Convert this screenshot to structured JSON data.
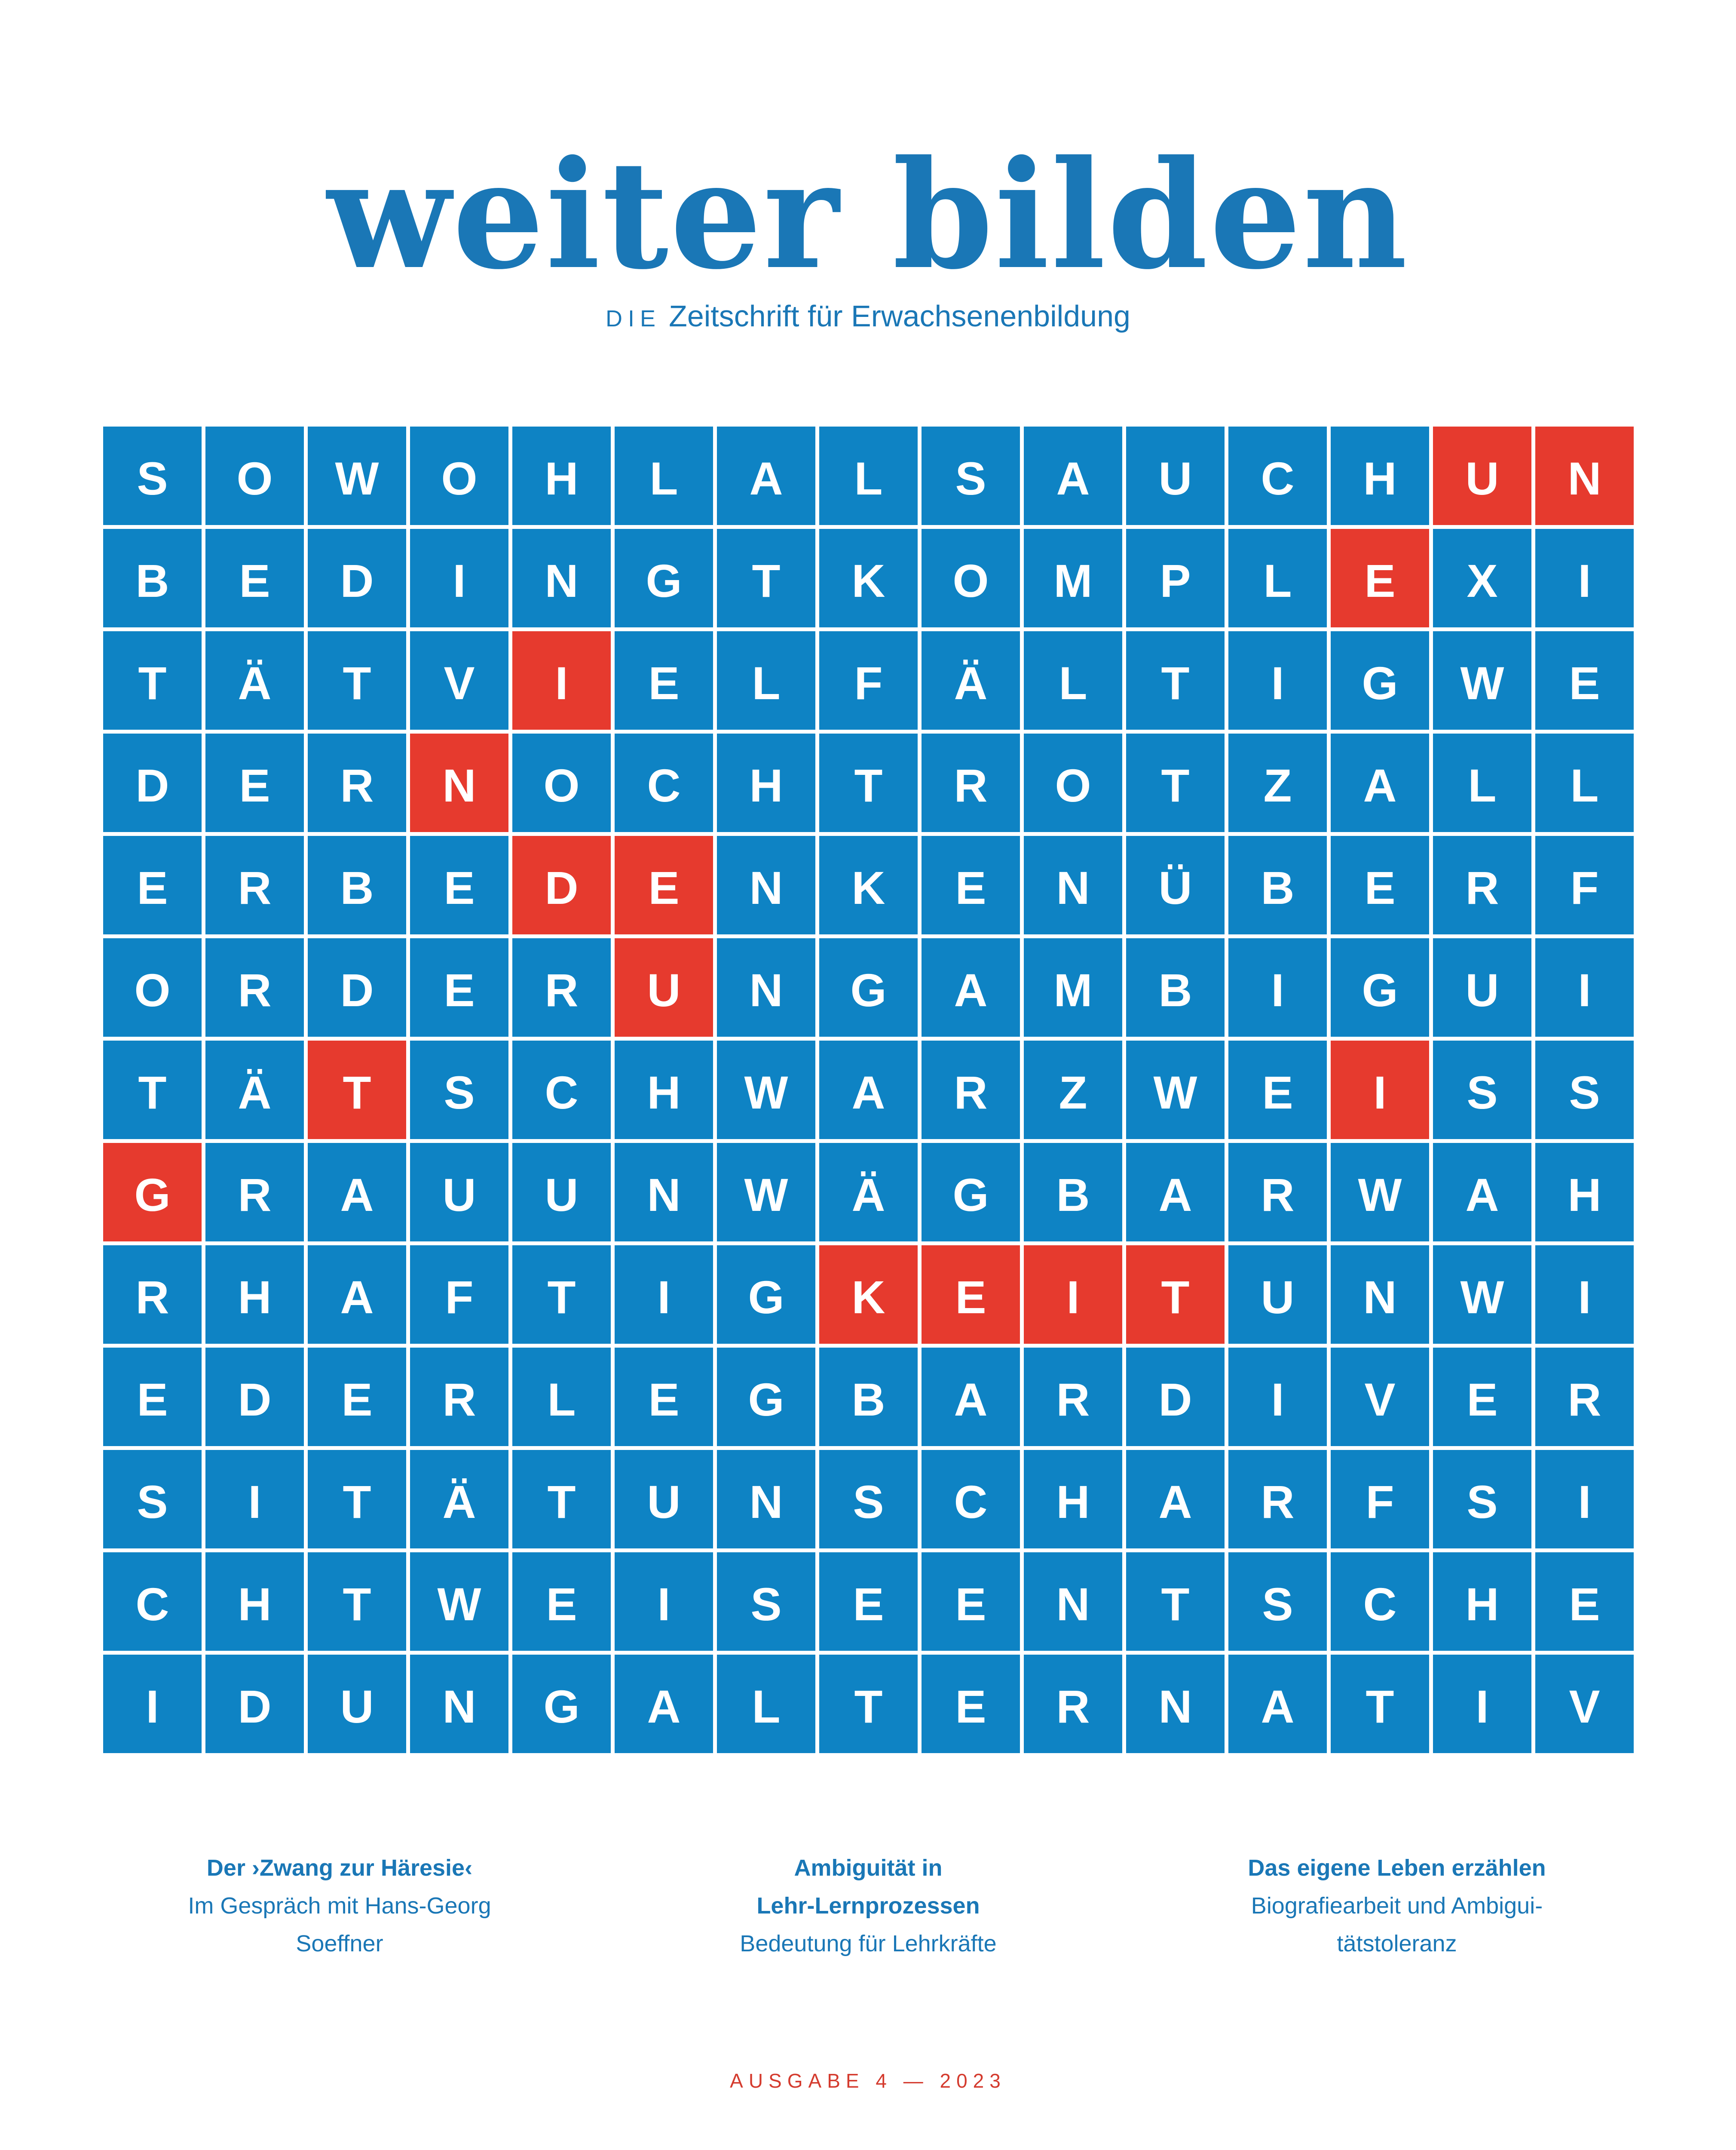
{
  "masthead": {
    "title": "weiter bilden",
    "subtitle_prefix": "DIE",
    "subtitle": "Zeitschrift für Erwachsenenbildung"
  },
  "grid": {
    "rows": [
      "SOWOHLALSAUCHUN",
      "BEDINGTKOMPLEXI",
      "TÄTVIELFÄLTIGWE",
      "DERNOCHTROTZALL",
      "ERBEDENKENÜBERF",
      "ORDERUNGAMBIGUI",
      "TÄTSCHWARZWEISS",
      "GRAUUNWÄGBARWAH",
      "RHAFTIGKEITUNWI",
      "EDERLEGBARDIVER",
      "SITÄTUNSCHARFSI",
      "CHTWEISEENTSCHE",
      "IDUNGALTERNATIV"
    ],
    "red_cells": [
      [
        0,
        13
      ],
      [
        0,
        14
      ],
      [
        1,
        12
      ],
      [
        2,
        4
      ],
      [
        3,
        3
      ],
      [
        4,
        4
      ],
      [
        4,
        5
      ],
      [
        5,
        5
      ],
      [
        6,
        2
      ],
      [
        6,
        12
      ],
      [
        7,
        0
      ],
      [
        8,
        7
      ],
      [
        8,
        8
      ],
      [
        8,
        9
      ],
      [
        8,
        10
      ]
    ],
    "hidden_word_red_letters": "UNEINDEUTIGKEIT"
  },
  "teasers": [
    {
      "title_lines": [
        "Der ›Zwang zur Häresie‹"
      ],
      "body_lines": [
        "Im Gespräch mit Hans-Georg",
        "Soeffner"
      ]
    },
    {
      "title_lines": [
        "Ambiguität in",
        "Lehr-Lernprozessen"
      ],
      "body_lines": [
        "Bedeutung für Lehrkräfte"
      ]
    },
    {
      "title_lines": [
        "Das eigene Leben erzählen"
      ],
      "body_lines": [
        "Biografiearbeit und Ambigui-",
        "tätstoleranz"
      ]
    }
  ],
  "footer": {
    "issue_label": "AUSGABE 4 — 2023"
  },
  "colors": {
    "brand_blue": "#1a77b6",
    "tile_blue": "#0e83c4",
    "tile_red": "#e63a2e",
    "footer_red": "#d43b2e",
    "tile_letter": "#ffffff"
  }
}
